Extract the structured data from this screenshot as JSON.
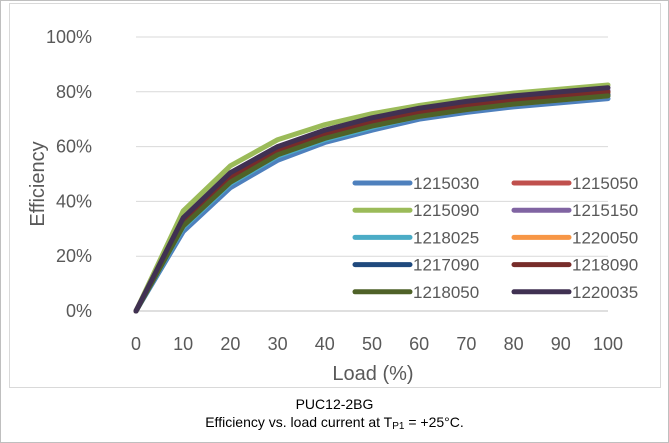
{
  "chart_data": {
    "type": "line",
    "xlabel": "Load (%)",
    "ylabel": "Efficiency",
    "x": [
      0,
      10,
      20,
      30,
      40,
      50,
      60,
      70,
      80,
      90,
      100
    ],
    "xlim": [
      0,
      100
    ],
    "ylim": [
      0,
      100
    ],
    "y_ticks": [
      "0%",
      "20%",
      "40%",
      "60%",
      "80%",
      "100%"
    ],
    "x_ticks": [
      "0",
      "10",
      "20",
      "30",
      "40",
      "50",
      "60",
      "70",
      "80",
      "90",
      "100"
    ],
    "grid": "horizontal",
    "legend_position": "inside-right",
    "series": [
      {
        "name": "1215030",
        "color": "#4e80bd",
        "values": [
          0,
          29,
          45,
          55,
          61.5,
          66,
          70,
          72.5,
          74.5,
          76,
          77.5
        ]
      },
      {
        "name": "1215050",
        "color": "#c0504d",
        "values": [
          0,
          33,
          49,
          58.5,
          64.5,
          69,
          72.5,
          75,
          77,
          78.5,
          80
        ]
      },
      {
        "name": "1215090",
        "color": "#9bbb59",
        "values": [
          0,
          36.5,
          53,
          62.5,
          68,
          72,
          75,
          77.5,
          79.5,
          81,
          82.5
        ]
      },
      {
        "name": "1215150",
        "color": "#8064a2",
        "values": [
          0,
          33.5,
          49.5,
          59,
          65,
          69.5,
          73,
          75.5,
          77.5,
          79,
          80.5
        ]
      },
      {
        "name": "1218025",
        "color": "#4bacc6",
        "values": [
          0,
          30.5,
          46.5,
          56.5,
          62.5,
          67,
          71,
          73.5,
          75.5,
          77,
          78.5
        ]
      },
      {
        "name": "1220050",
        "color": "#f79646",
        "values": [
          0,
          32,
          48,
          58,
          64,
          68.5,
          72,
          74.5,
          76.5,
          78,
          79.5
        ]
      },
      {
        "name": "1217090",
        "color": "#1f497d",
        "values": [
          0,
          31.5,
          47.5,
          57.5,
          63.5,
          68,
          71.5,
          74,
          76,
          77.5,
          79
        ]
      },
      {
        "name": "1218090",
        "color": "#772c2a",
        "values": [
          0,
          32.5,
          48.5,
          58.5,
          64.5,
          69,
          72.5,
          75,
          77,
          78.5,
          80
        ]
      },
      {
        "name": "1218050",
        "color": "#4f6228",
        "values": [
          0,
          31,
          47,
          57,
          63,
          67.5,
          71,
          73.5,
          75.5,
          77,
          78.5
        ]
      },
      {
        "name": "1220035",
        "color": "#403152",
        "values": [
          0,
          34,
          50.5,
          60,
          66,
          70.5,
          74,
          76.5,
          78.5,
          80,
          81.5
        ]
      }
    ]
  },
  "caption": {
    "line1": "PUC12-2BG",
    "line2_prefix": "Efficiency vs. load current at T",
    "line2_sub": "P1",
    "line2_suffix": " = +25°C."
  }
}
